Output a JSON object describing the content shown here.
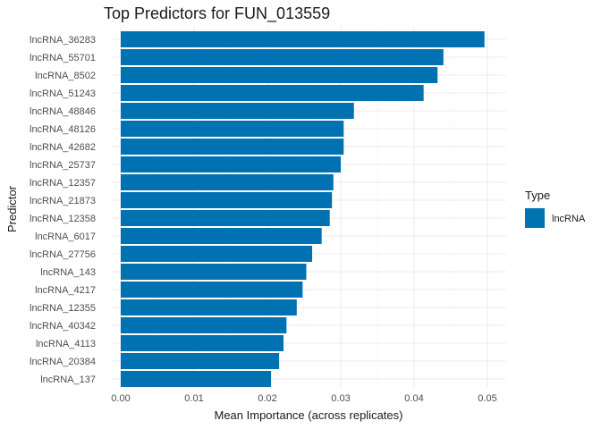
{
  "chart_data": {
    "type": "bar",
    "orientation": "horizontal",
    "title": "Top Predictors for FUN_013559",
    "xlabel": "Mean Importance (across replicates)",
    "ylabel": "Predictor",
    "xlim": [
      0,
      0.05
    ],
    "xticks": [
      0.0,
      0.01,
      0.02,
      0.03,
      0.04,
      0.05
    ],
    "xtick_labels": [
      "0.00",
      "0.01",
      "0.02",
      "0.03",
      "0.04",
      "0.05"
    ],
    "grid": true,
    "categories": [
      "lncRNA_36283",
      "lncRNA_55701",
      "lncRNA_8502",
      "lncRNA_51243",
      "lncRNA_48846",
      "lncRNA_48126",
      "lncRNA_42682",
      "lncRNA_25737",
      "lncRNA_12357",
      "lncRNA_21873",
      "lncRNA_12358",
      "lncRNA_6017",
      "lncRNA_27756",
      "lncRNA_143",
      "lncRNA_4217",
      "lncRNA_12355",
      "lncRNA_40342",
      "lncRNA_4113",
      "lncRNA_20384",
      "lncRNA_137"
    ],
    "values": [
      0.0496,
      0.044,
      0.0432,
      0.0413,
      0.0318,
      0.0304,
      0.0304,
      0.03,
      0.029,
      0.0288,
      0.0285,
      0.0274,
      0.0261,
      0.0253,
      0.0248,
      0.024,
      0.0226,
      0.0222,
      0.0216,
      0.0205
    ],
    "series": [
      {
        "name": "lncRNA",
        "color": "#0072B2"
      }
    ],
    "legend": {
      "title": "Type",
      "position": "right",
      "items": [
        "lncRNA"
      ]
    }
  }
}
